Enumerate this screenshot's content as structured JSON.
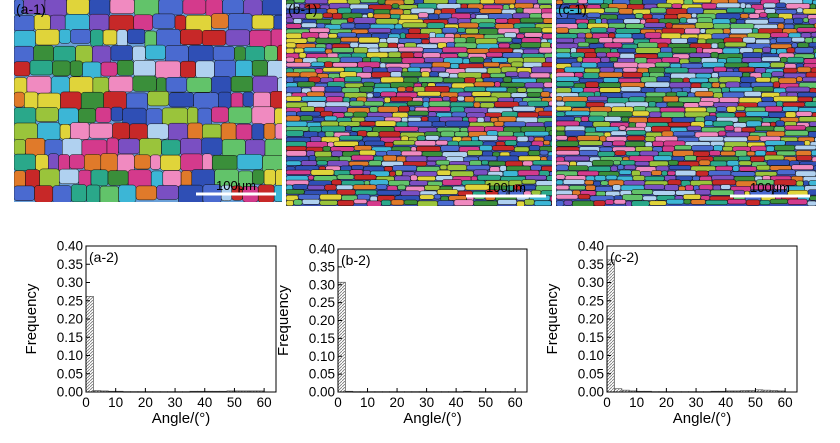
{
  "micrographs": [
    {
      "label": "(a-1)",
      "scale_text": "100μm"
    },
    {
      "label": "(b-1)",
      "scale_text": "100μm"
    },
    {
      "label": "(c-1)",
      "scale_text": "100μm"
    }
  ],
  "chart_data": [
    {
      "type": "bar",
      "panel_label": "(a-2)",
      "xlabel": "Angle/(°)",
      "ylabel": "Frequency",
      "xlim": [
        0,
        64
      ],
      "ylim": [
        0,
        0.4
      ],
      "xticks": [
        0,
        10,
        20,
        30,
        40,
        50,
        60
      ],
      "yticks": [
        "0.00",
        "0.05",
        "0.10",
        "0.15",
        "0.20",
        "0.25",
        "0.30",
        "0.35",
        "0.40"
      ],
      "bin_width": 2.5,
      "x": [
        1.25,
        3.75,
        6.25,
        8.75,
        11.25,
        13.75,
        16.25,
        18.75,
        21.25,
        23.75,
        26.25,
        28.75,
        31.25,
        33.75,
        36.25,
        38.75,
        41.25,
        43.75,
        46.25,
        48.75,
        51.25,
        53.75,
        56.25,
        58.75
      ],
      "values": [
        0.262,
        0.004,
        0.003,
        0.002,
        0.002,
        0.001,
        0.001,
        0.001,
        0.001,
        0.001,
        0.001,
        0.001,
        0.001,
        0.001,
        0.002,
        0.002,
        0.002,
        0.002,
        0.002,
        0.003,
        0.003,
        0.003,
        0.003,
        0.003
      ]
    },
    {
      "type": "bar",
      "panel_label": "(b-2)",
      "xlabel": "Angle/(°)",
      "ylabel": "Frequency",
      "xlim": [
        0,
        64
      ],
      "ylim": [
        0,
        0.4
      ],
      "xticks": [
        0,
        10,
        20,
        30,
        40,
        50,
        60
      ],
      "yticks": [
        "0.00",
        "0.05",
        "0.10",
        "0.15",
        "0.20",
        "0.25",
        "0.30",
        "0.35",
        "0.40"
      ],
      "bin_width": 2.5,
      "x": [
        1.25,
        3.75,
        6.25,
        8.75,
        11.25,
        13.75,
        16.25,
        18.75,
        21.25,
        23.75,
        26.25,
        28.75,
        31.25,
        33.75,
        36.25,
        38.75,
        41.25,
        43.75,
        46.25,
        48.75,
        51.25,
        53.75,
        56.25,
        58.75
      ],
      "values": [
        0.307,
        0.002,
        0.001,
        0.001,
        0.001,
        0.001,
        0.001,
        0.001,
        0.001,
        0.001,
        0.001,
        0.001,
        0.001,
        0.001,
        0.001,
        0.001,
        0.001,
        0.002,
        0.001,
        0.001,
        0.001,
        0.001,
        0.001,
        0.001
      ]
    },
    {
      "type": "bar",
      "panel_label": "(c-2)",
      "xlabel": "Angle/(°)",
      "ylabel": "Frequency",
      "xlim": [
        0,
        64
      ],
      "ylim": [
        0,
        0.4
      ],
      "xticks": [
        0,
        10,
        20,
        30,
        40,
        50,
        60
      ],
      "yticks": [
        "0.00",
        "0.05",
        "0.10",
        "0.15",
        "0.20",
        "0.25",
        "0.30",
        "0.35",
        "0.40"
      ],
      "bin_width": 2.5,
      "x": [
        1.25,
        3.75,
        6.25,
        8.75,
        11.25,
        13.75,
        16.25,
        18.75,
        21.25,
        23.75,
        26.25,
        28.75,
        31.25,
        33.75,
        36.25,
        38.75,
        41.25,
        43.75,
        46.25,
        48.75,
        51.25,
        53.75,
        56.25,
        58.75
      ],
      "values": [
        0.362,
        0.009,
        0.005,
        0.003,
        0.002,
        0.002,
        0.001,
        0.001,
        0.001,
        0.001,
        0.001,
        0.001,
        0.001,
        0.001,
        0.002,
        0.002,
        0.003,
        0.003,
        0.004,
        0.004,
        0.006,
        0.005,
        0.004,
        0.003
      ]
    }
  ]
}
